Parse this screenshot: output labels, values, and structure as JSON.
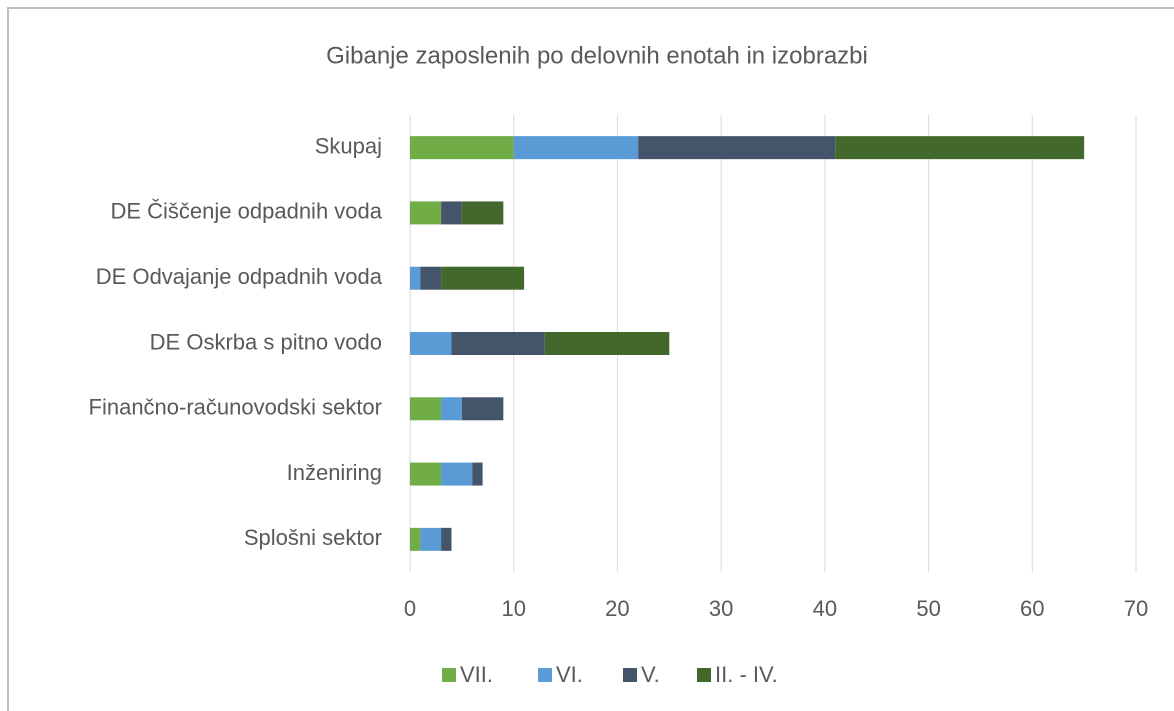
{
  "chart_data": {
    "type": "stacked_barh",
    "title": "Gibanje zaposlenih po delovnih enotah in izobrazbi",
    "categories": [
      "Skupaj",
      "DE Čiščenje odpadnih voda",
      "DE Odvajanje odpadnih voda",
      "DE Oskrba s pitno vodo",
      "Finančno-računovodski sektor",
      "Inženiring",
      "Splošni sektor"
    ],
    "series": [
      {
        "name": "VII.",
        "color": "#70ad47",
        "values": [
          10,
          3,
          0,
          0,
          3,
          3,
          1
        ]
      },
      {
        "name": "VI.",
        "color": "#5b9bd5",
        "values": [
          12,
          0,
          1,
          4,
          2,
          3,
          2
        ]
      },
      {
        "name": "V.",
        "color": "#44546a",
        "values": [
          19,
          2,
          2,
          9,
          4,
          1,
          1
        ]
      },
      {
        "name": "II. - IV.",
        "color": "#43682b",
        "values": [
          24,
          4,
          8,
          12,
          0,
          0,
          0
        ]
      }
    ],
    "xlim": [
      0,
      70
    ],
    "xticks": [
      0,
      10,
      20,
      30,
      40,
      50,
      60,
      70
    ],
    "grid": true,
    "legend": "bottom"
  }
}
